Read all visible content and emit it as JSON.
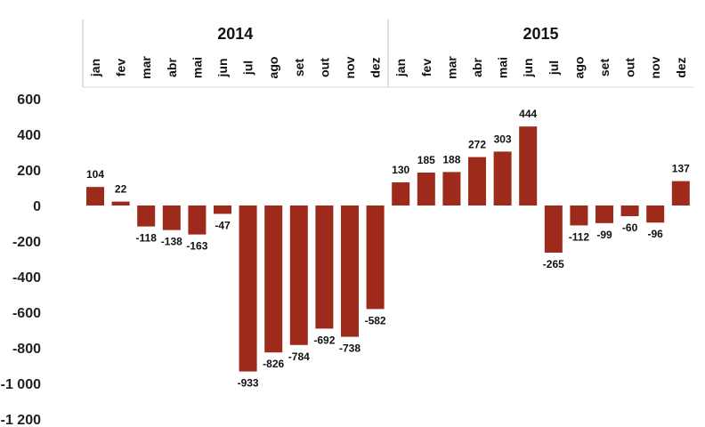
{
  "chart_data": {
    "type": "bar",
    "years": [
      {
        "label": "2014",
        "months": [
          "jan",
          "fev",
          "mar",
          "abr",
          "mai",
          "jun",
          "jul",
          "ago",
          "set",
          "out",
          "nov",
          "dez"
        ]
      },
      {
        "label": "2015",
        "months": [
          "jan",
          "fev",
          "mar",
          "abr",
          "mai",
          "jun",
          "jul",
          "ago",
          "set",
          "out",
          "nov",
          "dez"
        ]
      }
    ],
    "categories": [
      "jan",
      "fev",
      "mar",
      "abr",
      "mai",
      "jun",
      "jul",
      "ago",
      "set",
      "out",
      "nov",
      "dez",
      "jan",
      "fev",
      "mar",
      "abr",
      "mai",
      "jun",
      "jul",
      "ago",
      "set",
      "out",
      "nov",
      "dez"
    ],
    "values": [
      104,
      22,
      -118,
      -138,
      -163,
      -47,
      -933,
      -826,
      -784,
      -692,
      -738,
      -582,
      130,
      185,
      188,
      272,
      303,
      444,
      -265,
      -112,
      -99,
      -60,
      -96,
      137
    ],
    "value_labels": [
      "104",
      "22",
      "-118",
      "-138",
      "-163",
      "-47",
      "-933",
      "-826",
      "-784",
      "-692",
      "-738",
      "-582",
      "130",
      "185",
      "188",
      "272",
      "303",
      "444",
      "-265",
      "-112",
      "-99",
      "-60",
      "-96",
      "137"
    ],
    "yticks": [
      600,
      400,
      200,
      0,
      -200,
      -400,
      -600,
      -800,
      -1000,
      -1200
    ],
    "ytick_labels": [
      "600",
      "400",
      "200",
      "0",
      "-200",
      "-400",
      "-600",
      "-800",
      "-1 000",
      "-1 200"
    ],
    "ylim": [
      -1200,
      600
    ],
    "bar_color": "#9e2a1b",
    "grid": false,
    "legend": "none"
  }
}
